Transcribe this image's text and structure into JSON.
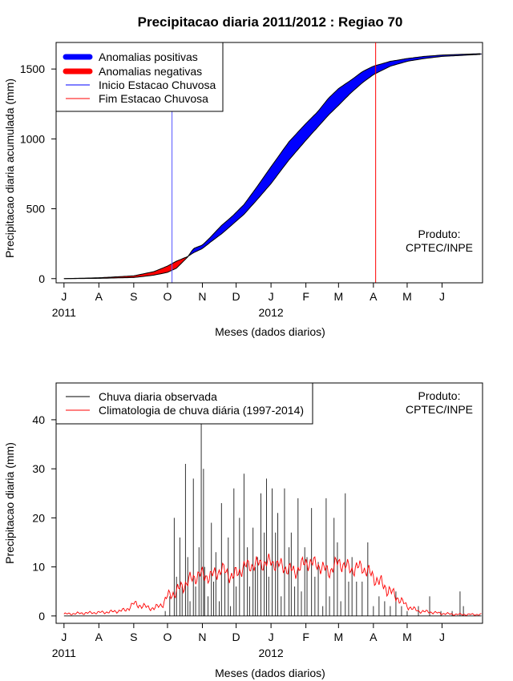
{
  "chart_data": [
    {
      "type": "area",
      "title": "Precipitacao diaria 2011/2012 : Regiao 70",
      "xlabel": "Meses (dados diarios)",
      "ylabel": "Precipitacao diaria acumulada (mm)",
      "x_unit": "days since 2011-07-01",
      "xlim": [
        -7,
        372
      ],
      "ylim": [
        -30,
        1690
      ],
      "month_ticks": {
        "labels": [
          "J",
          "A",
          "S",
          "O",
          "N",
          "D",
          "J",
          "F",
          "M",
          "A",
          "M",
          "J"
        ],
        "days": [
          0,
          31,
          62,
          92,
          123,
          153,
          184,
          215,
          244,
          275,
          305,
          336
        ]
      },
      "year_labels": [
        {
          "text": "2011",
          "day": 0
        },
        {
          "text": "2012",
          "day": 184
        }
      ],
      "yticks": [
        0,
        500,
        1000,
        1500
      ],
      "legend": {
        "position": "top-left",
        "entries": [
          {
            "label": "Anomalias positivas",
            "color": "#0000ff",
            "style": "thick"
          },
          {
            "label": "Anomalias negativas",
            "color": "#ff0000",
            "style": "thick"
          },
          {
            "label": "Inicio Estacao Chuvosa",
            "color": "#0000ff",
            "style": "thin"
          },
          {
            "label": "Fim Estacao Chuvosa",
            "color": "#ff0000",
            "style": "thin"
          }
        ]
      },
      "annotation": [
        "Produto:",
        "CPTEC/INPE"
      ],
      "rainy_season_start_day": 96,
      "rainy_season_end_day": 277,
      "observed_cumulative": {
        "x": [
          0,
          31,
          62,
          80,
          92,
          100,
          110,
          115,
          123,
          130,
          140,
          150,
          160,
          170,
          184,
          200,
          215,
          225,
          235,
          244,
          255,
          265,
          275,
          290,
          305,
          320,
          336,
          371
        ],
        "y": [
          0,
          2,
          8,
          25,
          45,
          75,
          155,
          215,
          240,
          295,
          380,
          450,
          530,
          640,
          800,
          980,
          1110,
          1190,
          1290,
          1360,
          1420,
          1480,
          1520,
          1555,
          1575,
          1590,
          1600,
          1610
        ]
      },
      "climatology_cumulative": {
        "x": [
          0,
          31,
          62,
          80,
          92,
          100,
          110,
          115,
          123,
          130,
          140,
          150,
          160,
          170,
          184,
          200,
          215,
          225,
          235,
          244,
          255,
          265,
          275,
          290,
          305,
          320,
          336,
          371
        ],
        "y": [
          0,
          6,
          20,
          50,
          90,
          125,
          158,
          185,
          215,
          260,
          320,
          390,
          460,
          550,
          680,
          850,
          990,
          1080,
          1170,
          1240,
          1330,
          1400,
          1460,
          1520,
          1555,
          1575,
          1590,
          1605
        ]
      }
    },
    {
      "type": "bar",
      "title": "",
      "xlabel": "Meses (dados diarios)",
      "ylabel": "Precipitacao diaria (mm)",
      "x_unit": "days since 2011-07-01",
      "xlim": [
        -7,
        372
      ],
      "ylim": [
        -1.5,
        47.5
      ],
      "month_ticks": {
        "labels": [
          "J",
          "A",
          "S",
          "O",
          "N",
          "D",
          "J",
          "F",
          "M",
          "A",
          "M",
          "J"
        ],
        "days": [
          0,
          31,
          62,
          92,
          123,
          153,
          184,
          215,
          244,
          275,
          305,
          336
        ]
      },
      "year_labels": [
        {
          "text": "2011",
          "day": 0
        },
        {
          "text": "2012",
          "day": 184
        }
      ],
      "yticks": [
        0,
        10,
        20,
        30,
        40
      ],
      "legend": {
        "position": "top-left",
        "entries": [
          {
            "label": "Chuva diaria observada",
            "color": "#000000",
            "style": "thin"
          },
          {
            "label": "Climatologia de chuva diária (1997-2014)",
            "color": "#ff0000",
            "style": "thin"
          }
        ]
      },
      "annotation": [
        "Produto:",
        "CPTEC/INPE"
      ],
      "observed_spikes": {
        "day": [
          90,
          94,
          98,
          100,
          103,
          105,
          108,
          110,
          112,
          115,
          117,
          120,
          122,
          124,
          125,
          128,
          131,
          133,
          135,
          138,
          140,
          143,
          146,
          148,
          151,
          153,
          156,
          160,
          163,
          165,
          168,
          170,
          172,
          175,
          178,
          180,
          182,
          185,
          188,
          190,
          193,
          196,
          200,
          202,
          205,
          208,
          211,
          214,
          216,
          220,
          223,
          226,
          230,
          233,
          236,
          240,
          243,
          246,
          250,
          253,
          256,
          260,
          265,
          270,
          275,
          280,
          285,
          290,
          295,
          300,
          305,
          315,
          325,
          335,
          345,
          352,
          355
        ],
        "value": [
          1,
          4,
          20,
          8,
          16,
          6,
          31,
          12,
          3,
          28,
          6,
          14,
          45,
          30,
          10,
          4,
          19,
          7,
          13,
          3,
          23,
          9,
          16,
          2,
          26,
          6,
          20,
          29,
          14,
          6,
          18,
          10,
          12,
          25,
          17,
          28,
          8,
          26,
          17,
          21,
          4,
          26,
          14,
          17,
          6,
          24,
          5,
          14,
          12,
          22,
          8,
          11,
          2,
          24,
          4,
          20,
          15,
          3,
          25,
          7,
          12,
          7,
          7,
          15,
          2,
          4,
          3,
          2,
          5,
          2,
          1,
          2,
          4,
          1,
          1,
          5,
          2
        ]
      },
      "climatology": {
        "x": [
          0,
          20,
          40,
          55,
          62,
          70,
          80,
          88,
          92,
          100,
          110,
          120,
          130,
          140,
          150,
          160,
          170,
          184,
          195,
          205,
          215,
          225,
          235,
          244,
          255,
          265,
          275,
          285,
          295,
          305,
          315,
          325,
          336,
          350,
          371
        ],
        "y": [
          0.4,
          0.6,
          0.8,
          1.2,
          2.5,
          2,
          1.5,
          2.5,
          4,
          5,
          7,
          8.5,
          8,
          9.5,
          8,
          10,
          10.5,
          11,
          10,
          9,
          11,
          10.5,
          9,
          11,
          9.5,
          10,
          8,
          6,
          4,
          2,
          1,
          0.8,
          0.5,
          0.3,
          0.3
        ]
      }
    }
  ]
}
